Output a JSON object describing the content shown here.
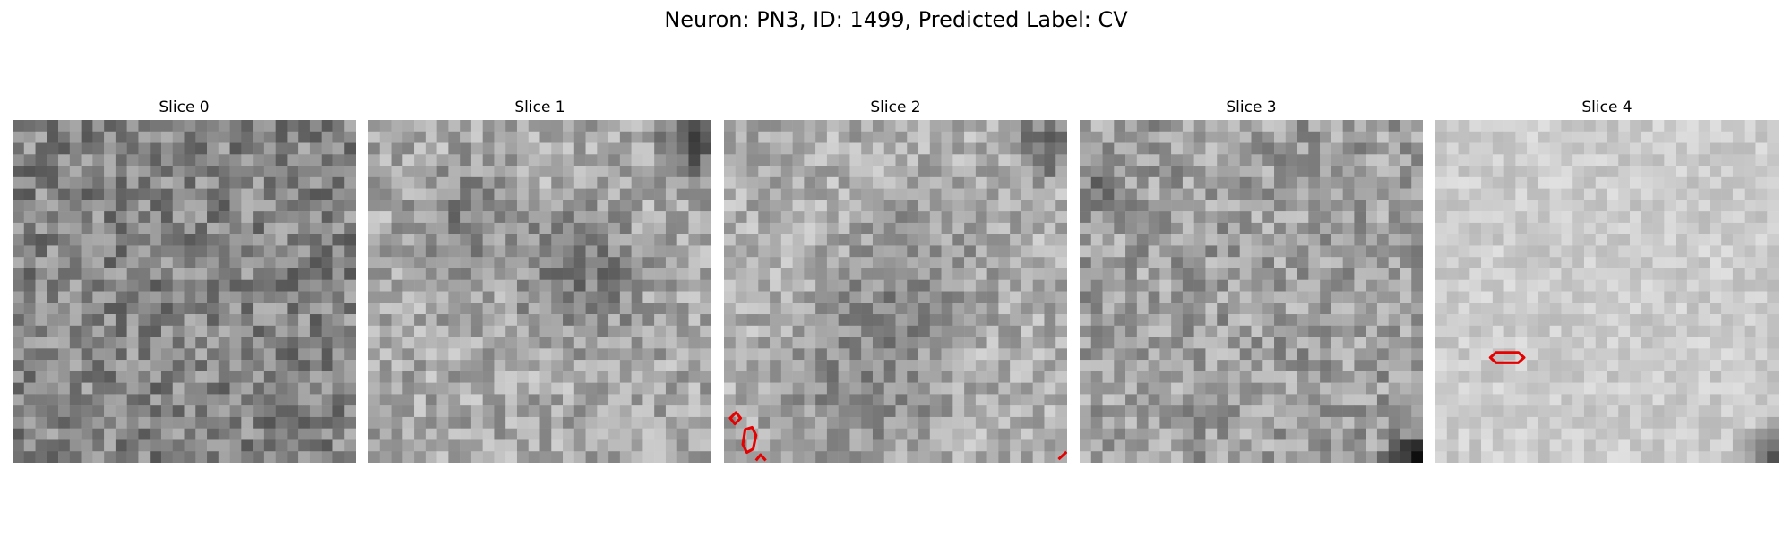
{
  "figure": {
    "title": "Neuron: PN3, ID: 1499, Predicted Label: CV"
  },
  "panels": [
    {
      "title": "Slice 0",
      "base_gray": 0.52,
      "contrast": 0.19,
      "seed": 11,
      "dark_blobs": [],
      "contours": []
    },
    {
      "title": "Slice 1",
      "base_gray": 0.66,
      "contrast": 0.16,
      "seed": 23,
      "dark_blobs": [
        "upper-left",
        "center-right",
        "top-right-corner"
      ],
      "contours": []
    },
    {
      "title": "Slice 2",
      "base_gray": 0.68,
      "contrast": 0.15,
      "seed": 37,
      "dark_blobs": [
        "center",
        "lower-band",
        "top-right-corner"
      ],
      "contours": [
        "lower-left-small-outlines",
        "bottom-right-tick"
      ]
    },
    {
      "title": "Slice 3",
      "base_gray": 0.62,
      "contrast": 0.17,
      "seed": 41,
      "dark_blobs": [
        "left-edge",
        "bottom-right-corner"
      ],
      "contours": []
    },
    {
      "title": "Slice 4",
      "base_gray": 0.8,
      "contrast": 0.08,
      "seed": 59,
      "dark_blobs": [
        "bottom-right-corner"
      ],
      "contours": [
        "left-center-hexagon"
      ]
    }
  ],
  "colors": {
    "contour": "#e60000",
    "background": "#ffffff"
  }
}
